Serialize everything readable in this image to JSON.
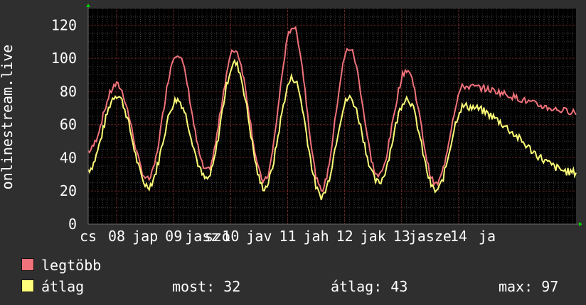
{
  "chart_data": {
    "type": "line",
    "ylabel": "onlinestream.live",
    "ylim": [
      0,
      130
    ],
    "yticks": [
      0,
      20,
      40,
      60,
      80,
      100,
      120
    ],
    "xlim": [
      0,
      8.56
    ],
    "xticks": [
      {
        "label": "cs",
        "x": 0.0
      },
      {
        "label": "08",
        "x": 0.5
      },
      {
        "label": "jap",
        "x": 1.0
      },
      {
        "label": "09",
        "x": 1.5
      },
      {
        "label": "jasz",
        "x": 2.0
      },
      {
        "label": "szo",
        "x": 2.27
      },
      {
        "label": "10",
        "x": 2.5
      },
      {
        "label": "jav",
        "x": 3.0
      },
      {
        "label": "11",
        "x": 3.5
      },
      {
        "label": "jah",
        "x": 4.0
      },
      {
        "label": "12",
        "x": 4.5
      },
      {
        "label": "jak",
        "x": 5.0
      },
      {
        "label": "13",
        "x": 5.5
      },
      {
        "label": "jasze",
        "x": 6.0
      },
      {
        "label": "14",
        "x": 6.5
      },
      {
        "label": "ja",
        "x": 7.0
      }
    ],
    "grid": true,
    "peaks": [
      {
        "t": 0.5,
        "max": 82,
        "avg": 78
      },
      {
        "t": 1.56,
        "max": 101,
        "avg": 75
      },
      {
        "t": 2.57,
        "max": 103,
        "avg": 97
      },
      {
        "t": 3.59,
        "max": 117,
        "avg": 88
      },
      {
        "t": 4.58,
        "max": 104,
        "avg": 76
      },
      {
        "t": 5.59,
        "max": 91,
        "avg": 76
      },
      {
        "t": 6.59,
        "max": 81,
        "avg": 71
      }
    ],
    "troughs": [
      {
        "t": 1.05,
        "max": 25,
        "avg": 23
      },
      {
        "t": 2.08,
        "max": 30,
        "avg": 27
      },
      {
        "t": 3.09,
        "max": 24,
        "avg": 22
      },
      {
        "t": 4.09,
        "max": 19,
        "avg": 17
      },
      {
        "t": 5.09,
        "max": 27,
        "avg": 25
      },
      {
        "t": 6.1,
        "max": 22,
        "avg": 20
      }
    ],
    "start": {
      "max": 42,
      "avg": 33
    },
    "end": {
      "max": 66,
      "avg": 31
    },
    "series": [
      {
        "name": "legtöbb",
        "color": "#f0727a"
      },
      {
        "name": "átlag",
        "color": "#ffff79"
      }
    ]
  },
  "legend": {
    "max_label": "legtöbb",
    "avg_label": "átlag",
    "max_color": "#f0727a",
    "avg_color": "#ffff79"
  },
  "stats": {
    "now": "most: 32",
    "avg": "átlag: 43",
    "max": "max: 97"
  }
}
